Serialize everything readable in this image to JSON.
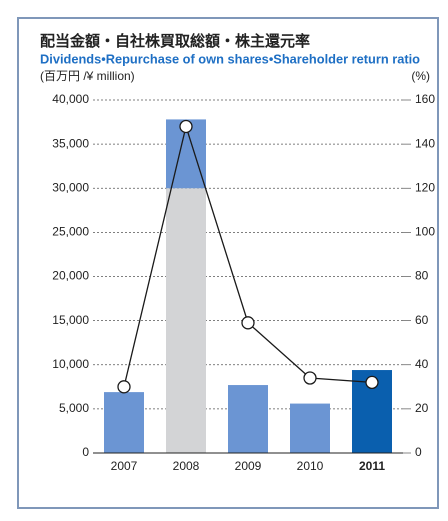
{
  "chart_data": {
    "type": "bar_line",
    "title": "配当金額・自社株買取総額・株主還元率",
    "subtitle": "Dividends•Repurchase of own shares•Shareholder return ratio",
    "y_label": "(百万円 /¥ million)",
    "y2_label": "(%)",
    "categories": [
      "2007",
      "2008",
      "2009",
      "2010",
      "2011"
    ],
    "highlight_index": 4,
    "series": [
      {
        "type": "bar",
        "color": "#d3d4d6",
        "values": [
          null,
          30000,
          null,
          null,
          null
        ]
      },
      {
        "type": "bar",
        "color": "#6b95d3",
        "colors": [
          "#6b95d3",
          "#6b95d3",
          "#6b95d3",
          "#6b95d3",
          "#0a5fae"
        ],
        "values": [
          6900,
          7800,
          7700,
          5600,
          9400
        ]
      },
      {
        "type": "line",
        "axis": "y2",
        "color": "#1a1a1a",
        "values": [
          30,
          148,
          59,
          34,
          32
        ]
      }
    ],
    "ylim": [
      0,
      40000
    ],
    "yticks": [
      {
        "value": 0,
        "label": "0"
      },
      {
        "value": 5000,
        "label": "5,000"
      },
      {
        "value": 10000,
        "label": "10,000"
      },
      {
        "value": 15000,
        "label": "15,000"
      },
      {
        "value": 20000,
        "label": "20,000"
      },
      {
        "value": 25000,
        "label": "25,000"
      },
      {
        "value": 30000,
        "label": "30,000"
      },
      {
        "value": 35000,
        "label": "35,000"
      },
      {
        "value": 40000,
        "label": "40,000"
      }
    ],
    "y2lim": [
      0,
      160
    ],
    "y2ticks": [
      0,
      20,
      40,
      60,
      80,
      100,
      120,
      140,
      160
    ],
    "grid": true
  }
}
